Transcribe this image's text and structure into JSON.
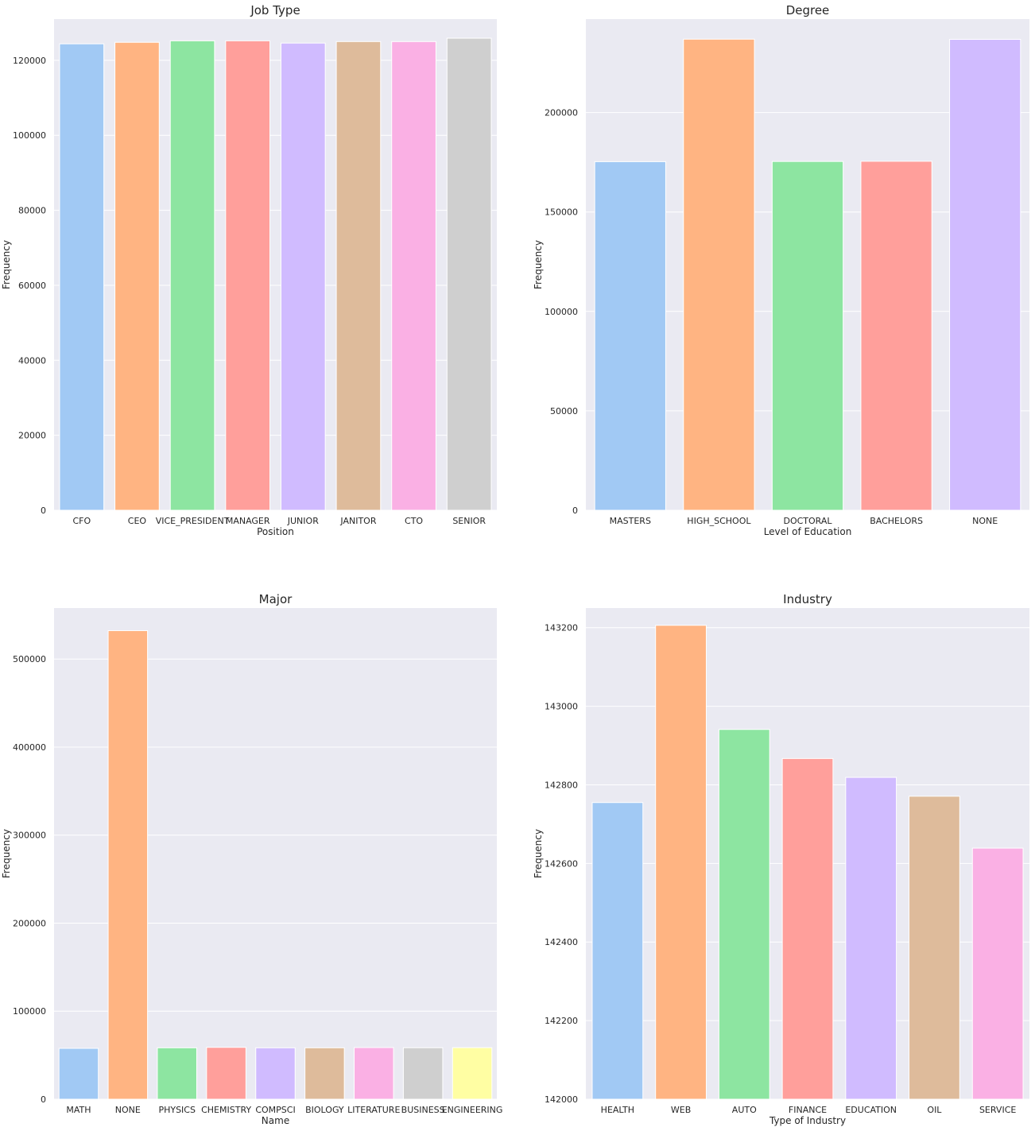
{
  "chart_data": [
    {
      "type": "bar",
      "title": "Job Type",
      "xlabel": "Position",
      "ylabel": "Frequency",
      "ylim": [
        0,
        131000
      ],
      "yticks": [
        0,
        20000,
        40000,
        60000,
        80000,
        100000,
        120000
      ],
      "categories": [
        "CFO",
        "CEO",
        "VICE_PRESIDENT",
        "MANAGER",
        "JUNIOR",
        "JANITOR",
        "CTO",
        "SENIOR"
      ],
      "values": [
        124400,
        124800,
        125200,
        125200,
        124600,
        125000,
        125000,
        125900
      ],
      "colors": [
        "#a1c9f4",
        "#ffb482",
        "#8de5a1",
        "#ff9f9b",
        "#d0bbff",
        "#debb9b",
        "#fab0e4",
        "#cfcfcf"
      ]
    },
    {
      "type": "bar",
      "title": "Degree",
      "xlabel": "Level of Education",
      "ylabel": "Frequency",
      "ylim": [
        0,
        247000
      ],
      "yticks": [
        0,
        50000,
        100000,
        150000,
        200000
      ],
      "categories": [
        "MASTERS",
        "HIGH_SCHOOL",
        "DOCTORAL",
        "BACHELORS",
        "NONE"
      ],
      "values": [
        175300,
        236900,
        175400,
        175500,
        236800
      ],
      "colors": [
        "#a1c9f4",
        "#ffb482",
        "#8de5a1",
        "#ff9f9b",
        "#d0bbff"
      ]
    },
    {
      "type": "bar",
      "title": "Major",
      "xlabel": "Name",
      "ylabel": "Frequency",
      "ylim": [
        0,
        558000
      ],
      "yticks": [
        0,
        100000,
        200000,
        300000,
        400000,
        500000
      ],
      "categories": [
        "MATH",
        "NONE",
        "PHYSICS",
        "CHEMISTRY",
        "COMPSCI",
        "BIOLOGY",
        "LITERATURE",
        "BUSINESS",
        "ENGINEERING"
      ],
      "values": [
        57800,
        532300,
        58400,
        58900,
        58400,
        58400,
        58700,
        58500,
        58600
      ],
      "colors": [
        "#a1c9f4",
        "#ffb482",
        "#8de5a1",
        "#ff9f9b",
        "#d0bbff",
        "#debb9b",
        "#fab0e4",
        "#cfcfcf",
        "#fffea3"
      ]
    },
    {
      "type": "bar",
      "title": "Industry",
      "xlabel": "Type of Industry",
      "ylabel": "Frequency",
      "ylim": [
        142000,
        143250
      ],
      "yticks": [
        142000,
        142200,
        142400,
        142600,
        142800,
        143000,
        143200
      ],
      "categories": [
        "HEALTH",
        "WEB",
        "AUTO",
        "FINANCE",
        "EDUCATION",
        "OIL",
        "SERVICE"
      ],
      "values": [
        142755,
        143206,
        142941,
        142867,
        142819,
        142771,
        142639
      ],
      "colors": [
        "#a1c9f4",
        "#ffb482",
        "#8de5a1",
        "#ff9f9b",
        "#d0bbff",
        "#debb9b",
        "#fab0e4"
      ]
    }
  ]
}
